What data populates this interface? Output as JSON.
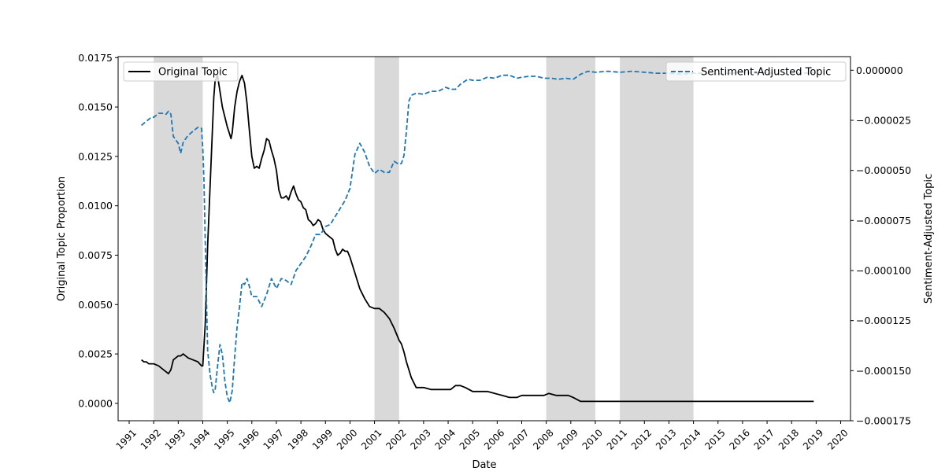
{
  "chart_data": {
    "type": "line",
    "title": "",
    "xlabel": "Date",
    "ylabel_left": "Original Topic Proportion",
    "ylabel_right": "Sentiment-Adjusted Topic",
    "xlim": [
      1990.55,
      2020.4
    ],
    "ylim_left": [
      -0.00088,
      0.01755
    ],
    "ylim_right": [
      -0.000175,
      6.8e-06
    ],
    "x_ticks": [
      "1991",
      "1992",
      "1993",
      "1994",
      "1995",
      "1996",
      "1997",
      "1998",
      "1999",
      "2000",
      "2001",
      "2002",
      "2003",
      "2004",
      "2005",
      "2006",
      "2007",
      "2008",
      "2009",
      "2010",
      "2011",
      "2012",
      "2013",
      "2014",
      "2015",
      "2016",
      "2017",
      "2018",
      "2019",
      "2020"
    ],
    "y_left_ticks": [
      "0.0000",
      "0.0025",
      "0.0050",
      "0.0075",
      "0.0100",
      "0.0125",
      "0.0150",
      "0.0175"
    ],
    "y_right_ticks": [
      "−0.000175",
      "−0.000150",
      "−0.000125",
      "−0.000100",
      "−0.000075",
      "−0.000050",
      "−0.000025",
      "0.000000"
    ],
    "grid": false,
    "shaded_periods": [
      [
        1992.0,
        1994.0
      ],
      [
        2001.0,
        2002.0
      ],
      [
        2008.0,
        2010.0
      ],
      [
        2011.0,
        2014.0
      ]
    ],
    "series": [
      {
        "name": "Original Topic",
        "axis": "left",
        "style": "solid",
        "color": "#000000",
        "x": [
          1991.5,
          1991.6,
          1991.7,
          1991.8,
          1991.9,
          1992.0,
          1992.2,
          1992.4,
          1992.5,
          1992.6,
          1992.7,
          1992.8,
          1993.0,
          1993.1,
          1993.2,
          1993.4,
          1993.6,
          1993.8,
          1993.95,
          1994.0,
          1994.1,
          1994.2,
          1994.3,
          1994.4,
          1994.45,
          1994.5,
          1994.6,
          1994.7,
          1994.8,
          1994.9,
          1995.0,
          1995.1,
          1995.15,
          1995.2,
          1995.3,
          1995.4,
          1995.5,
          1995.6,
          1995.7,
          1995.8,
          1995.9,
          1996.0,
          1996.1,
          1996.2,
          1996.3,
          1996.4,
          1996.5,
          1996.6,
          1996.7,
          1996.8,
          1996.9,
          1997.0,
          1997.1,
          1997.2,
          1997.3,
          1997.4,
          1997.5,
          1997.6,
          1997.7,
          1997.8,
          1997.9,
          1998.0,
          1998.1,
          1998.2,
          1998.3,
          1998.4,
          1998.5,
          1998.6,
          1998.7,
          1998.8,
          1998.9,
          1999.0,
          1999.1,
          1999.2,
          1999.3,
          1999.4,
          1999.5,
          1999.6,
          1999.7,
          1999.8,
          1999.9,
          2000.0,
          2000.2,
          2000.4,
          2000.6,
          2000.8,
          2001.0,
          2001.2,
          2001.4,
          2001.6,
          2001.8,
          2002.0,
          2002.1,
          2002.2,
          2002.3,
          2002.5,
          2002.7,
          2003.0,
          2003.3,
          2003.6,
          2003.9,
          2004.1,
          2004.3,
          2004.5,
          2004.7,
          2005.0,
          2005.3,
          2005.6,
          2005.9,
          2006.2,
          2006.5,
          2006.8,
          2007.0,
          2007.3,
          2007.6,
          2007.9,
          2008.1,
          2008.4,
          2008.7,
          2008.9,
          2009.1,
          2009.4,
          2009.8,
          2010.2,
          2010.6,
          2011.0,
          2011.5,
          2012.0,
          2012.5,
          2013.0,
          2013.5,
          2014.0,
          2014.5,
          2015.0,
          2015.5,
          2016.0,
          2016.5,
          2017.0,
          2017.5,
          2018.0,
          2018.5,
          2018.9
        ],
        "y": [
          0.0022,
          0.0021,
          0.0021,
          0.002,
          0.002,
          0.002,
          0.0019,
          0.0017,
          0.0016,
          0.0015,
          0.0017,
          0.0022,
          0.0024,
          0.0024,
          0.0025,
          0.0023,
          0.0022,
          0.0021,
          0.0019,
          0.0019,
          0.004,
          0.008,
          0.011,
          0.014,
          0.0155,
          0.0163,
          0.0166,
          0.0158,
          0.015,
          0.0145,
          0.014,
          0.0136,
          0.0134,
          0.0137,
          0.015,
          0.0158,
          0.0163,
          0.0166,
          0.0162,
          0.0152,
          0.0138,
          0.0125,
          0.0119,
          0.012,
          0.0119,
          0.0124,
          0.0128,
          0.0134,
          0.0133,
          0.0128,
          0.0124,
          0.0118,
          0.0108,
          0.0104,
          0.0104,
          0.0105,
          0.0103,
          0.0107,
          0.011,
          0.0106,
          0.0103,
          0.0102,
          0.0099,
          0.0098,
          0.0093,
          0.0092,
          0.009,
          0.0091,
          0.0093,
          0.0092,
          0.0088,
          0.0086,
          0.0085,
          0.0084,
          0.0083,
          0.0078,
          0.0075,
          0.0076,
          0.0078,
          0.0077,
          0.0077,
          0.0074,
          0.0066,
          0.0058,
          0.0053,
          0.0049,
          0.0048,
          0.0048,
          0.0046,
          0.0043,
          0.0038,
          0.0032,
          0.003,
          0.0026,
          0.0021,
          0.0013,
          0.0008,
          0.0008,
          0.0007,
          0.0007,
          0.0007,
          0.0007,
          0.0009,
          0.0009,
          0.0008,
          0.0006,
          0.0006,
          0.0006,
          0.0005,
          0.0004,
          0.0003,
          0.0003,
          0.0004,
          0.0004,
          0.0004,
          0.0004,
          0.0005,
          0.0004,
          0.0004,
          0.0004,
          0.0003,
          0.0001,
          0.0001,
          0.0001,
          0.0001,
          0.0001,
          0.0001,
          0.0001,
          0.0001,
          0.0001,
          0.0001,
          0.0001,
          0.0001,
          0.0001,
          0.0001,
          0.0001,
          0.0001,
          0.0001,
          0.0001,
          0.0001,
          0.0001,
          0.0001
        ]
      },
      {
        "name": "Sentiment-Adjusted Topic",
        "axis": "right",
        "style": "dashed",
        "color": "#1f77b4",
        "x": [
          1991.5,
          1991.6,
          1991.7,
          1991.8,
          1991.9,
          1992.0,
          1992.2,
          1992.4,
          1992.5,
          1992.6,
          1992.7,
          1992.8,
          1993.0,
          1993.1,
          1993.2,
          1993.4,
          1993.6,
          1993.8,
          1993.95,
          1994.0,
          1994.05,
          1994.1,
          1994.15,
          1994.2,
          1994.3,
          1994.4,
          1994.45,
          1994.5,
          1994.6,
          1994.7,
          1994.8,
          1994.9,
          1995.0,
          1995.1,
          1995.2,
          1995.3,
          1995.4,
          1995.5,
          1995.6,
          1995.7,
          1995.8,
          1995.9,
          1996.0,
          1996.2,
          1996.4,
          1996.6,
          1996.8,
          1997.0,
          1997.2,
          1997.4,
          1997.6,
          1997.8,
          1998.0,
          1998.2,
          1998.4,
          1998.6,
          1998.8,
          1999.0,
          1999.2,
          1999.4,
          1999.6,
          1999.8,
          2000.0,
          2000.2,
          2000.4,
          2000.6,
          2000.8,
          2001.0,
          2001.2,
          2001.4,
          2001.6,
          2001.8,
          2002.0,
          2002.1,
          2002.2,
          2002.3,
          2002.4,
          2002.5,
          2002.7,
          2003.0,
          2003.3,
          2003.6,
          2003.9,
          2004.1,
          2004.3,
          2004.5,
          2004.8,
          2005.0,
          2005.3,
          2005.6,
          2005.9,
          2006.2,
          2006.5,
          2006.8,
          2007.0,
          2007.3,
          2007.6,
          2007.9,
          2008.2,
          2008.5,
          2008.8,
          2009.1,
          2009.4,
          2009.7,
          2010.0,
          2010.5,
          2011.0,
          2011.5,
          2012.0,
          2012.5,
          2013.0,
          2013.5,
          2014.0,
          2014.5,
          2015.0,
          2015.5,
          2016.0,
          2016.5,
          2017.0,
          2017.5,
          2018.0,
          2018.5,
          2018.9
        ],
        "y": [
          -2.75e-05,
          -2.65e-05,
          -2.55e-05,
          -2.45e-05,
          -2.35e-05,
          -2.35e-05,
          -2.15e-05,
          -2.15e-05,
          -2.2e-05,
          -2.05e-05,
          -2.2e-05,
          -3.3e-05,
          -3.65e-05,
          -4.15e-05,
          -3.6e-05,
          -3.25e-05,
          -3.05e-05,
          -2.85e-05,
          -2.9e-05,
          -3.9e-05,
          -5.5e-05,
          -8.5e-05,
          -0.000115,
          -0.00014,
          -0.000152,
          -0.000159,
          -0.000161,
          -0.00016,
          -0.000148,
          -0.000137,
          -0.000142,
          -0.000155,
          -0.000163,
          -0.000166,
          -0.00016,
          -0.000143,
          -0.000128,
          -0.000118,
          -0.000106,
          -0.000107,
          -0.000104,
          -0.000108,
          -0.000113,
          -0.000113,
          -0.000118,
          -0.000112,
          -0.000104,
          -0.000109,
          -0.000104,
          -0.000105,
          -0.000107,
          -0.0001,
          -9.65e-05,
          -9.3e-05,
          -8.8e-05,
          -8.2e-05,
          -8.2e-05,
          -7.8e-05,
          -7.7e-05,
          -7.3e-05,
          -6.9e-05,
          -6.5e-05,
          -5.9e-05,
          -4.2e-05,
          -3.65e-05,
          -4.1e-05,
          -4.8e-05,
          -5.15e-05,
          -4.95e-05,
          -5.1e-05,
          -5.1e-05,
          -4.55e-05,
          -4.7e-05,
          -4.65e-05,
          -4.25e-05,
          -3.05e-05,
          -1.55e-05,
          -1.25e-05,
          -1.15e-05,
          -1.2e-05,
          -1.05e-05,
          -1.05e-05,
          -8.5e-06,
          -9.5e-06,
          -9.5e-06,
          -7e-06,
          -4.5e-06,
          -5e-06,
          -5e-06,
          -3.5e-06,
          -4e-06,
          -2.5e-06,
          -2.5e-06,
          -4e-06,
          -3.5e-06,
          -3e-06,
          -3e-06,
          -4e-06,
          -4e-06,
          -4.5e-06,
          -4e-06,
          -4.5e-06,
          -2e-06,
          -5e-07,
          -1e-06,
          -5e-07,
          -1e-06,
          -5e-07,
          -1e-06,
          -1.5e-06,
          -1.5e-06,
          -2e-06,
          -1.5e-06,
          -1.5e-06,
          -2e-06,
          -1.5e-06,
          -1e-06,
          -1.5e-06,
          -1e-06,
          -2e-06,
          -1.5e-06,
          -1.5e-06,
          -1e-06
        ]
      }
    ],
    "legends": [
      {
        "placement": "upper left",
        "entries": [
          "Original Topic"
        ]
      },
      {
        "placement": "upper right",
        "entries": [
          "Sentiment-Adjusted Topic"
        ]
      }
    ]
  }
}
